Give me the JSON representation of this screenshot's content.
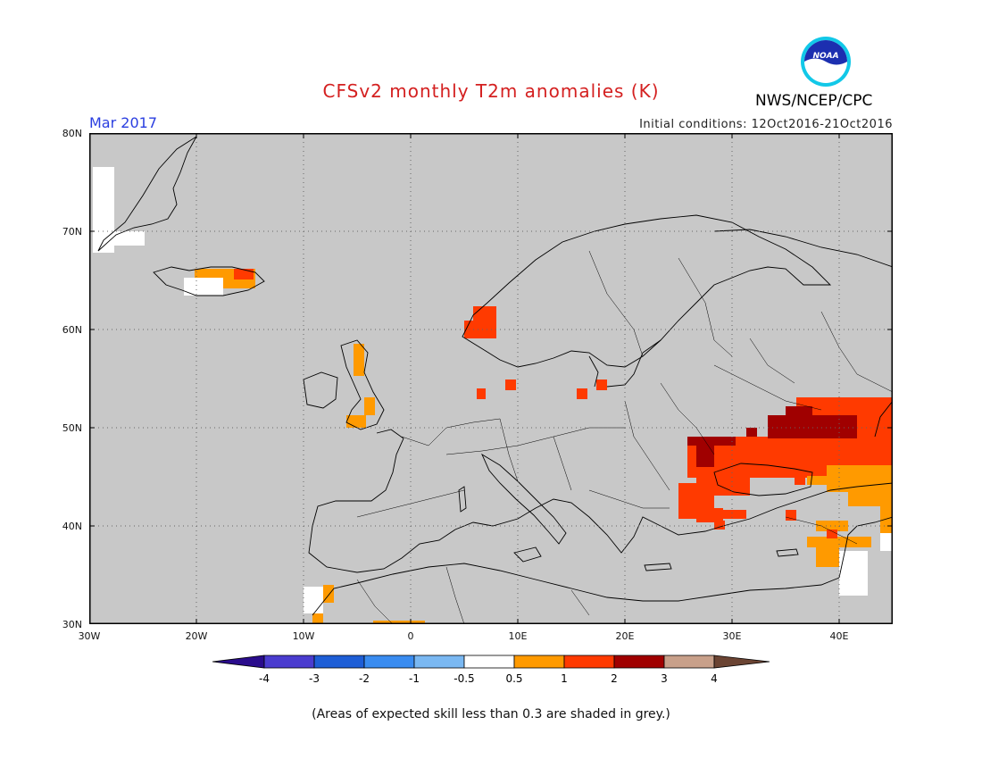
{
  "header": {
    "title": "CFSv2 monthly T2m anomalies (K)",
    "month": "Mar 2017",
    "initial_conditions": "Initial conditions: 12Oct2016-21Oct2016",
    "agency": "NWS/NCEP/CPC",
    "logo_text": "NOAA"
  },
  "map": {
    "lat_labels": [
      "80N",
      "70N",
      "60N",
      "50N",
      "40N",
      "30N"
    ],
    "lon_labels": [
      "30W",
      "20W",
      "10W",
      "0",
      "10E",
      "20E",
      "30E",
      "40E"
    ],
    "lat_range": [
      30,
      80
    ],
    "lon_range": [
      -30,
      45
    ],
    "background_color": "#c8c8c8",
    "grid": "dotted"
  },
  "colorbar": {
    "ticks": [
      "-4",
      "-3",
      "-2",
      "-1",
      "-0.5",
      "0.5",
      "1",
      "2",
      "3",
      "4"
    ],
    "colors": [
      "#2a0c8c",
      "#4a3ccf",
      "#1e5ed6",
      "#3a8cf0",
      "#7ab8f2",
      "#ffffff",
      "#ff9a00",
      "#ff3a00",
      "#a00000",
      "#c8a08a",
      "#6b4433"
    ]
  },
  "footnote": "(Areas of expected skill less than 0.3 are shaded in grey.)"
}
